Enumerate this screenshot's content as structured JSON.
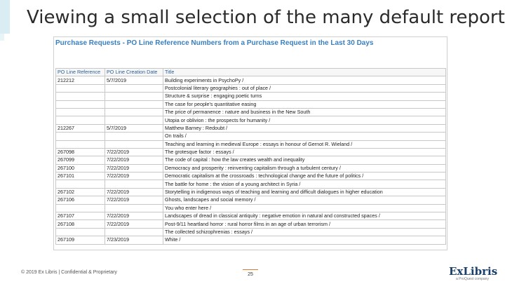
{
  "slide": {
    "title": "Viewing a small selection of the many default reports",
    "footer": "© 2019 Ex Libris | Confidential & Proprietary",
    "page_number": "25",
    "logo": "ExLibris",
    "logo_sub": "a ProQuest company"
  },
  "report": {
    "title": "Purchase Requests - PO Line Reference Numbers from a Purchase Request in the Last 30 Days",
    "columns": [
      "PO Line Reference",
      "PO Line Creation Date",
      "Title"
    ],
    "rows": [
      [
        "212212",
        "5/7/2019",
        "Building experiments in PsychoPy /"
      ],
      [
        "",
        "",
        "Postcolonial literary geographies : out of place /"
      ],
      [
        "",
        "",
        "Structure & surprise : engaging poetic turns"
      ],
      [
        "",
        "",
        "The case for people's quantitative easing"
      ],
      [
        "",
        "",
        "The price of permanence : nature and business in the New South"
      ],
      [
        "",
        "",
        "Utopia or oblivion : the prospects for humanity /"
      ],
      [
        "212267",
        "5/7/2019",
        "Matthew Barney : Redoubt /"
      ],
      [
        "",
        "",
        "On trails /"
      ],
      [
        "",
        "",
        "Teaching and learning in medieval Europe : essays in honour of Gernot R. Wieland /"
      ],
      [
        "267098",
        "7/22/2019",
        "The grotesque factor : essays /"
      ],
      [
        "267099",
        "7/22/2019",
        "The code of capital : how the law creates wealth and inequality"
      ],
      [
        "267100",
        "7/22/2019",
        "Democracy and prosperity : reinventing capitalism through a turbulent century /"
      ],
      [
        "267101",
        "7/22/2019",
        "Democratic capitalism at the crossroads : technological change and the future of politics /"
      ],
      [
        "",
        "",
        "The battle for home : the vision of a young architect in Syria /"
      ],
      [
        "267102",
        "7/22/2019",
        "Storytelling in indigenous ways of teaching and learning and difficult dialogues in higher education"
      ],
      [
        "267106",
        "7/22/2019",
        "Ghosts, landscapes and social memory /"
      ],
      [
        "",
        "",
        "You who enter here /"
      ],
      [
        "267107",
        "7/22/2019",
        "Landscapes of dread in classical antiquity : negative emotion in natural and constructed spaces /"
      ],
      [
        "267108",
        "7/22/2019",
        "Post-9/11 heartland horror : rural horror films in an age of urban terrorism /"
      ],
      [
        "",
        "",
        "The collected schizophrenias : essays /"
      ],
      [
        "267109",
        "7/23/2019",
        "White /"
      ]
    ]
  }
}
